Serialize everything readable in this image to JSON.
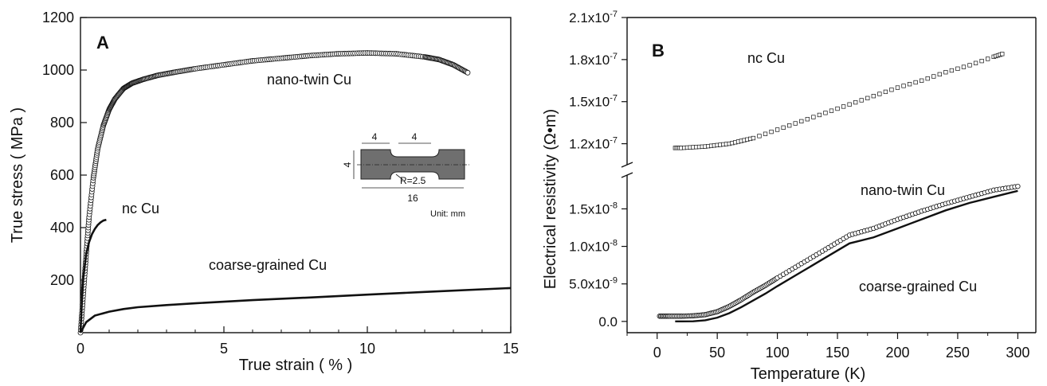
{
  "chart_data": [
    {
      "type": "scatter",
      "panel_label": "A",
      "xlabel": "True strain  ( % )",
      "ylabel": "True stress ( MPa )",
      "xlim": [
        0,
        15
      ],
      "ylim": [
        0,
        1200
      ],
      "x_ticks": [
        "0",
        "5",
        "10",
        "15"
      ],
      "y_ticks": [
        "200",
        "400",
        "600",
        "800",
        "1000",
        "1200"
      ],
      "grid": false,
      "series": [
        {
          "name": "nano-twin Cu",
          "style": "open-circles",
          "x": [
            0,
            0.1,
            0.2,
            0.3,
            0.45,
            0.6,
            0.8,
            1.0,
            1.2,
            1.5,
            1.8,
            2.2,
            2.7,
            3.3,
            4,
            5,
            6,
            7,
            8,
            9,
            10,
            11,
            12,
            12.5,
            13,
            13.5
          ],
          "y": [
            0,
            150,
            300,
            440,
            590,
            700,
            790,
            850,
            890,
            930,
            950,
            965,
            980,
            992,
            1005,
            1020,
            1035,
            1045,
            1055,
            1062,
            1065,
            1062,
            1050,
            1040,
            1020,
            990
          ]
        },
        {
          "name": "nc Cu",
          "style": "solid-line",
          "x": [
            0,
            0.05,
            0.1,
            0.2,
            0.3,
            0.4,
            0.5,
            0.6,
            0.7,
            0.8,
            0.9
          ],
          "y": [
            0,
            120,
            210,
            300,
            345,
            375,
            395,
            410,
            420,
            427,
            430
          ]
        },
        {
          "name": "coarse-grained Cu",
          "style": "solid-line",
          "x": [
            0,
            0.2,
            0.5,
            1.0,
            1.5,
            2,
            3,
            4,
            5,
            6,
            8,
            10,
            12,
            15
          ],
          "y": [
            0,
            40,
            65,
            80,
            90,
            97,
            105,
            112,
            118,
            124,
            134,
            145,
            155,
            170
          ]
        }
      ],
      "annotations": {
        "series_labels": [
          "nano-twin Cu",
          "nc Cu",
          "coarse-grained Cu"
        ],
        "inset_dims": {
          "grip_len": "4",
          "gauge_len": "4",
          "width": "4",
          "radius": "R=2.5",
          "total_len": "16"
        },
        "inset_unit": "Unit: mm"
      }
    },
    {
      "type": "scatter",
      "panel_label": "B",
      "xlabel": "Temperature (K)",
      "ylabel": "Electrical resistivity (Ω•m)",
      "xlim": [
        -25,
        315
      ],
      "x_ticks": [
        "0",
        "50",
        "100",
        "150",
        "200",
        "250",
        "300"
      ],
      "y_broken_axis": true,
      "upper_segment": {
        "ylim": [
          1.05e-07,
          2.1e-07
        ],
        "ticks": [
          {
            "value": 1.2e-07,
            "base": "1.2x10",
            "exp": "-7"
          },
          {
            "value": 1.5e-07,
            "base": "1.5x10",
            "exp": "-7"
          },
          {
            "value": 1.8e-07,
            "base": "1.8x10",
            "exp": "-7"
          },
          {
            "value": 2.1e-07,
            "base": "2.1x10",
            "exp": "-7"
          }
        ]
      },
      "lower_segment": {
        "ylim": [
          -1.5e-09,
          1.95e-08
        ],
        "ticks": [
          {
            "value": 0,
            "base": "0.0",
            "exp": ""
          },
          {
            "value": 5e-09,
            "base": "5.0x10",
            "exp": "-9"
          },
          {
            "value": 1e-08,
            "base": "1.0x10",
            "exp": "-8"
          },
          {
            "value": 1.5e-08,
            "base": "1.5x10",
            "exp": "-8"
          }
        ]
      },
      "grid": false,
      "series": [
        {
          "name": "nc Cu",
          "style": "open-squares",
          "segment": "upper",
          "x": [
            15,
            20,
            30,
            40,
            50,
            60,
            70,
            80,
            100,
            120,
            140,
            160,
            180,
            200,
            220,
            240,
            260,
            280,
            287
          ],
          "y": [
            1.17e-07,
            1.17e-07,
            1.175e-07,
            1.18e-07,
            1.19e-07,
            1.2e-07,
            1.22e-07,
            1.24e-07,
            1.3e-07,
            1.36e-07,
            1.42e-07,
            1.48e-07,
            1.54e-07,
            1.6e-07,
            1.65e-07,
            1.71e-07,
            1.76e-07,
            1.82e-07,
            1.84e-07
          ]
        },
        {
          "name": "nano-twin Cu",
          "style": "open-circles",
          "segment": "lower",
          "x": [
            2,
            10,
            20,
            30,
            40,
            50,
            60,
            70,
            80,
            90,
            100,
            120,
            140,
            160,
            180,
            200,
            220,
            240,
            260,
            280,
            300
          ],
          "y": [
            7e-10,
            7e-10,
            7e-10,
            7.5e-10,
            9e-10,
            1.3e-09,
            2e-09,
            2.9e-09,
            3.9e-09,
            4.8e-09,
            5.8e-09,
            7.7e-09,
            9.6e-09,
            1.15e-08,
            1.24e-08,
            1.36e-08,
            1.47e-08,
            1.57e-08,
            1.66e-08,
            1.75e-08,
            1.8e-08
          ]
        },
        {
          "name": "coarse-grained Cu",
          "style": "solid-line",
          "segment": "lower",
          "x": [
            15,
            20,
            30,
            40,
            50,
            60,
            70,
            80,
            90,
            100,
            120,
            140,
            160,
            180,
            200,
            220,
            240,
            260,
            280,
            300
          ],
          "y": [
            0,
            0,
            2e-11,
            1.5e-10,
            5e-10,
            1.1e-09,
            1.9e-09,
            2.8e-09,
            3.7e-09,
            4.7e-09,
            6.6e-09,
            8.5e-09,
            1.04e-08,
            1.12e-08,
            1.24e-08,
            1.36e-08,
            1.48e-08,
            1.58e-08,
            1.66e-08,
            1.74e-08
          ]
        }
      ],
      "annotations": {
        "series_labels": [
          "nc Cu",
          "nano-twin Cu",
          "coarse-grained Cu"
        ]
      }
    }
  ]
}
